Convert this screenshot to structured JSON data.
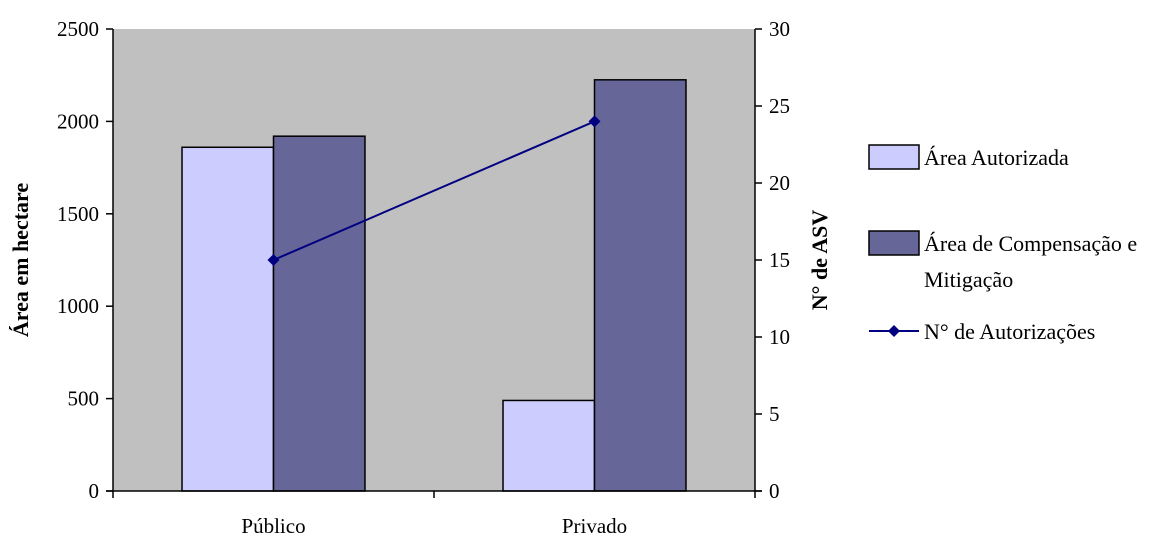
{
  "chart_data": {
    "type": "bar",
    "categories": [
      "Público",
      "Privado"
    ],
    "series": [
      {
        "name": "Área Autorizada",
        "kind": "bar",
        "axis": "left",
        "color": "#CCCCFF",
        "values": [
          1860,
          490
        ]
      },
      {
        "name": "Área de Compensação e Mitigação",
        "kind": "bar",
        "axis": "left",
        "color": "#666699",
        "values": [
          1920,
          2225
        ]
      },
      {
        "name": "N° de Autorizações",
        "kind": "line",
        "axis": "right",
        "color": "#000080",
        "values": [
          15,
          24
        ]
      }
    ],
    "ylabel": "Área em hectare",
    "y2label": "N° de ASV",
    "ylim": [
      0,
      2500
    ],
    "y2lim": [
      0,
      30
    ],
    "yticks": [
      0,
      500,
      1000,
      1500,
      2000,
      2500
    ],
    "y2ticks": [
      0,
      5,
      10,
      15,
      20,
      25,
      30
    ],
    "plot_background": "#C0C0C0",
    "grid": false,
    "legend_position": "right",
    "legend": [
      {
        "lines": [
          "Área Autorizada"
        ]
      },
      {
        "lines": [
          "Área de Compensação e",
          "Mitigação"
        ]
      },
      {
        "lines": [
          "N° de Autorizações"
        ]
      }
    ]
  }
}
